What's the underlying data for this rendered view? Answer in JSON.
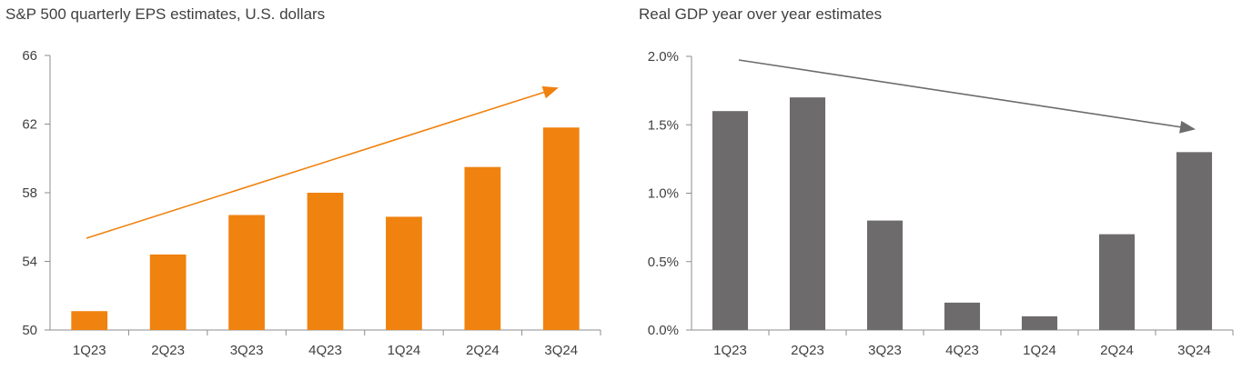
{
  "chart_data": [
    {
      "type": "bar",
      "title": "S&P 500 quarterly EPS estimates, U.S. dollars",
      "categories": [
        "1Q23",
        "2Q23",
        "3Q23",
        "4Q23",
        "1Q24",
        "2Q24",
        "3Q24"
      ],
      "values": [
        51.1,
        54.4,
        56.7,
        58.0,
        56.6,
        59.5,
        61.8
      ],
      "ylim": [
        50,
        66
      ],
      "yticks": [
        "50",
        "54",
        "58",
        "62",
        "66"
      ],
      "ytick_values": [
        50,
        54,
        58,
        62,
        66
      ],
      "xlabel": "",
      "ylabel": "",
      "bar_color": "#F0820F",
      "trend_arrow": "upward",
      "grid": false
    },
    {
      "type": "bar",
      "title": "Real GDP year over year estimates",
      "categories": [
        "1Q23",
        "2Q23",
        "3Q23",
        "4Q23",
        "1Q24",
        "2Q24",
        "3Q24"
      ],
      "values": [
        1.6,
        1.7,
        0.8,
        0.2,
        0.1,
        0.7,
        1.3
      ],
      "ylim": [
        0,
        2.0
      ],
      "yticks": [
        "0.0%",
        "0.5%",
        "1.0%",
        "1.5%",
        "2.0%"
      ],
      "ytick_values": [
        0,
        0.5,
        1.0,
        1.5,
        2.0
      ],
      "xlabel": "",
      "ylabel": "",
      "bar_color": "#6D6B6B",
      "trend_arrow": "downward",
      "grid": false
    }
  ]
}
